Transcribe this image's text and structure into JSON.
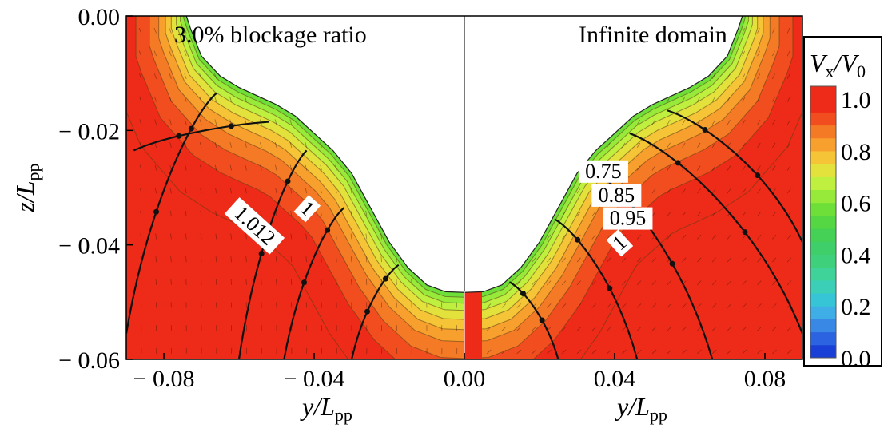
{
  "chart_data": {
    "type": "heatmap",
    "xlabel": "y/L",
    "xlabel_sub": "pp",
    "ylabel": "z/L",
    "ylabel_sub": "pp",
    "xlim": [
      -0.09,
      0.09
    ],
    "ylim": [
      -0.06,
      0.0
    ],
    "yticks": [
      {
        "value": 0.0,
        "label": "0.00"
      },
      {
        "value": -0.02,
        "label": "− 0.02"
      },
      {
        "value": -0.04,
        "label": "− 0.04"
      },
      {
        "value": -0.06,
        "label": "− 0.06"
      }
    ],
    "xticks": [
      {
        "value": -0.08,
        "label": "− 0.08"
      },
      {
        "value": -0.04,
        "label": "− 0.04"
      },
      {
        "value": 0.0,
        "label": "0.00"
      },
      {
        "value": 0.04,
        "label": "0.04"
      },
      {
        "value": 0.08,
        "label": "0.08"
      }
    ],
    "panels": [
      {
        "side": "left",
        "title": "3.0% blockage ratio"
      },
      {
        "side": "right",
        "title": "Infinite domain"
      }
    ],
    "colorbar": {
      "title": "V",
      "title_sub": "x",
      "title_sep": "/V",
      "title_sub2": "0",
      "range": [
        0.0,
        1.05
      ],
      "ticks": [
        {
          "value": 1.0,
          "label": "1.0"
        },
        {
          "value": 0.8,
          "label": "0.8"
        },
        {
          "value": 0.6,
          "label": "0.6"
        },
        {
          "value": 0.4,
          "label": "0.4"
        },
        {
          "value": 0.2,
          "label": "0.2"
        },
        {
          "value": 0.0,
          "label": "0.0"
        }
      ]
    },
    "contour_labels": [
      {
        "text": "1",
        "y": -0.043,
        "z": -0.0345,
        "angle": 42
      },
      {
        "text": "1.012",
        "y": -0.057,
        "z": -0.0375,
        "angle": 42
      },
      {
        "text": "0.75",
        "y": 0.037,
        "z": -0.0283,
        "angle": 0
      },
      {
        "text": "0.85",
        "y": 0.0405,
        "z": -0.0325,
        "angle": 0
      },
      {
        "text": "0.95",
        "y": 0.0435,
        "z": -0.0365,
        "angle": 0
      },
      {
        "text": "1",
        "y": 0.0425,
        "z": -0.0405,
        "angle": -42
      }
    ],
    "hull_boundary": [
      {
        "y": 0.0,
        "z": -0.0483
      },
      {
        "y": 0.005,
        "z": -0.0482
      },
      {
        "y": 0.01,
        "z": -0.047
      },
      {
        "y": 0.015,
        "z": -0.044
      },
      {
        "y": 0.02,
        "z": -0.0395
      },
      {
        "y": 0.025,
        "z": -0.0335
      },
      {
        "y": 0.03,
        "z": -0.0275
      },
      {
        "y": 0.035,
        "z": -0.0235
      },
      {
        "y": 0.04,
        "z": -0.0205
      },
      {
        "y": 0.045,
        "z": -0.0175
      },
      {
        "y": 0.05,
        "z": -0.0155
      },
      {
        "y": 0.055,
        "z": -0.014
      },
      {
        "y": 0.06,
        "z": -0.0125
      },
      {
        "y": 0.065,
        "z": -0.0105
      },
      {
        "y": 0.07,
        "z": -0.007
      },
      {
        "y": 0.073,
        "z": -0.002
      },
      {
        "y": 0.074,
        "z": 0.0
      }
    ],
    "contour_levels": [
      0.6,
      0.65,
      0.7,
      0.75,
      0.8,
      0.85,
      0.9,
      0.95,
      1.0
    ],
    "contour_offsets": [
      0.0008,
      0.0018,
      0.003,
      0.0045,
      0.0062,
      0.0082,
      0.011,
      0.015,
      0.022
    ],
    "colors": {
      "c1.0": "#ee2b18",
      "c0.95": "#f24d1e",
      "c0.9": "#f57a26",
      "c0.85": "#f8a02e",
      "c0.8": "#f5c537",
      "c0.75": "#e3e23d",
      "c0.7": "#bfef3f",
      "c0.65": "#98ea3a",
      "c0.6": "#6ddf38",
      "c0.4": "#3fcf6a",
      "c0.2": "#35c5d6",
      "c0.0": "#1a3fd6"
    }
  }
}
